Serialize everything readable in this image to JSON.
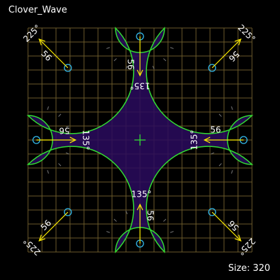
{
  "title": "Clover_Wave",
  "size_label": "Size: 320",
  "colors": {
    "background": "#000000",
    "fill": "#2a0a5e",
    "grid": "#6b5a2a",
    "outline": "#33dd33",
    "arrow": "#ffee00",
    "marker": "#33bbee",
    "tick": "#777777",
    "text": "#ffffff",
    "center": "#33dd33"
  },
  "annotations": {
    "radius_label": "56",
    "corner_angle_label": "225°",
    "edge_angle_label": "135°"
  }
}
